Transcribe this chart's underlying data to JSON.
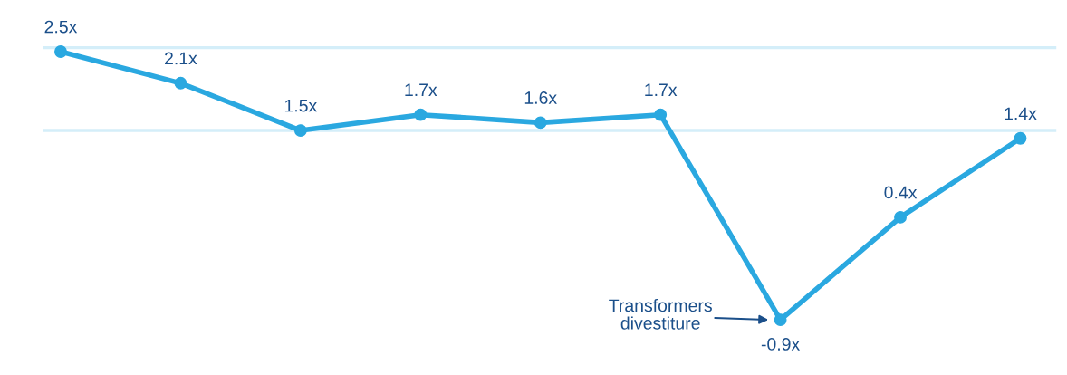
{
  "chart_data": {
    "type": "line",
    "categories": [
      null,
      null,
      null,
      null,
      null,
      null,
      null,
      null,
      null
    ],
    "series": [
      {
        "color": "#2aa8e0",
        "values": [
          2.5,
          2.1,
          1.5,
          1.7,
          1.6,
          1.7,
          -0.9,
          0.4,
          1.4
        ],
        "value_labels": [
          "2.5x",
          "2.1x",
          "1.5x",
          "1.7x",
          "1.6x",
          "1.7x",
          "-0.9x",
          "0.4x",
          "1.4x"
        ]
      }
    ],
    "marker": "circle",
    "line_style": "solid",
    "ref_lines": [
      {
        "axis": "y",
        "value": 2.55,
        "color": "#d4eef9"
      },
      {
        "axis": "y",
        "value": 1.5,
        "color": "#d4eef9"
      }
    ],
    "annotations": [
      "Transformers\ndivestiture"
    ],
    "grid": false,
    "legend": false,
    "tick_labels": false
  }
}
